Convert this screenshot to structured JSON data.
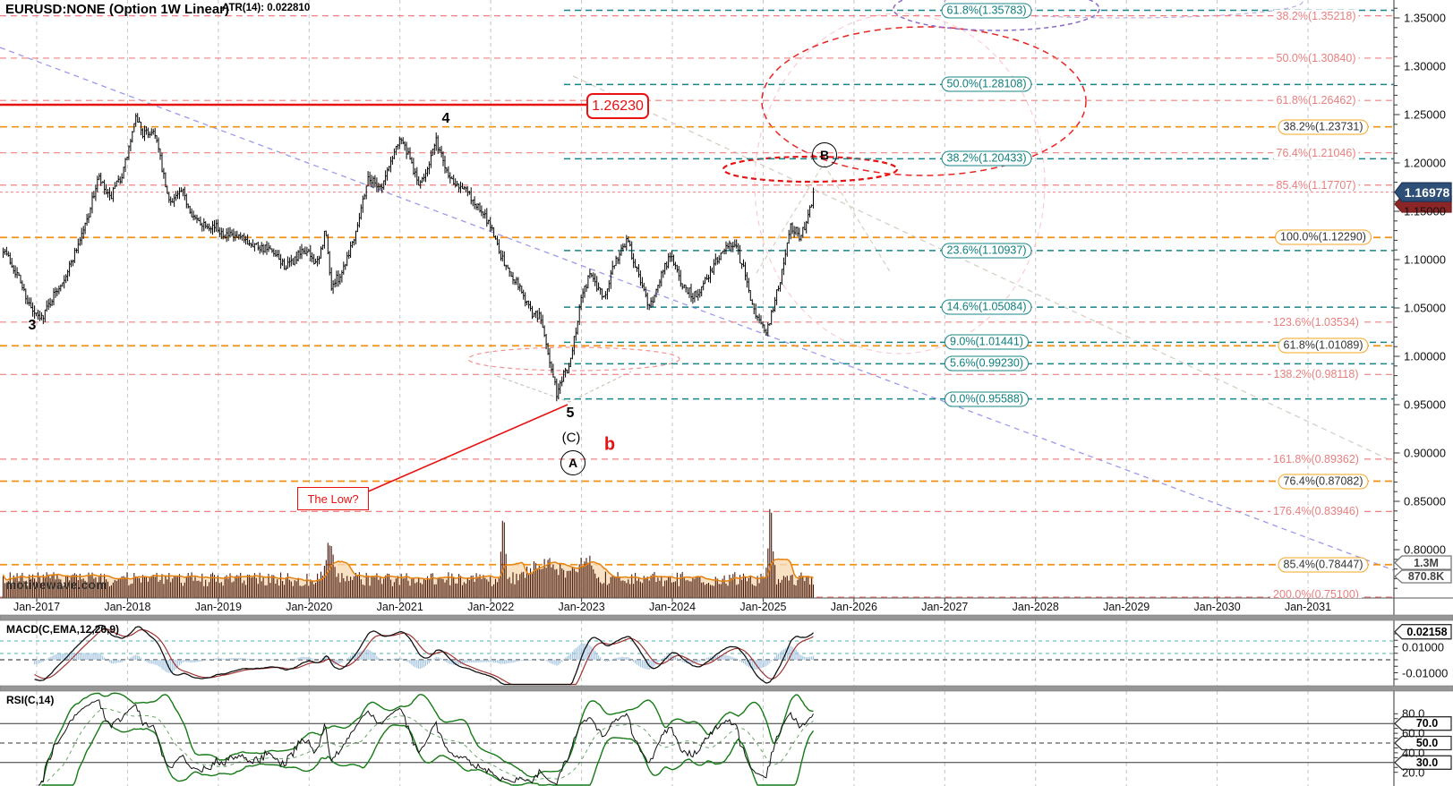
{
  "window": {
    "title": "EURUSD:NONE (Option 1W Linear)",
    "atr_label": "ATR(14): 0.022810",
    "watermark": "motivewave.com"
  },
  "colors": {
    "teal": "#18858a",
    "orange": "#f39016",
    "pink": "#f08080",
    "red": "#e81212",
    "grid": "#c4c4c4",
    "blue_trend": "#9a9aec",
    "tan_trend": "#d6cfc4",
    "candle": "#000000",
    "volume_bar": "#47180a",
    "volume_ma": "#e8820e",
    "volume_fill": "#f7d9b5",
    "macd_hist": "#a6c6e2",
    "macd_line": "#111111",
    "macd_signal": "#a03232",
    "rsi_line": "#111111",
    "rsi_band": "#157a15",
    "price_tag_bg": "#2e4f78",
    "alt_tag_bg": "#8c2626",
    "purple": "#8a6ac8",
    "pink_light": "#f5bcc4"
  },
  "price_axis": {
    "tick_labels": [
      "1.35000",
      "1.30000",
      "1.25000",
      "1.20000",
      "1.15000",
      "1.10000",
      "1.05000",
      "1.00000",
      "0.95000",
      "0.90000",
      "0.85000",
      "0.80000"
    ],
    "current_price_label": "1.16978"
  },
  "time_axis": {
    "labels": [
      "Jan-2017",
      "Jan-2018",
      "Jan-2019",
      "Jan-2020",
      "Jan-2021",
      "Jan-2022",
      "Jan-2023",
      "Jan-2024",
      "Jan-2025",
      "Jan-2026",
      "Jan-2027",
      "Jan-2028",
      "Jan-2029",
      "Jan-2030",
      "Jan-2031"
    ]
  },
  "volume_tags": [
    "1.3M",
    "870.8K"
  ],
  "level_line": {
    "label": "1.26230"
  },
  "macd_panel": {
    "title": "MACD(C,EMA,12,26,9)",
    "value_tag": "0.02158",
    "axis_labels": [
      {
        "label": "0.01000",
        "value": 0.01
      },
      {
        "label": "-0.01000",
        "value": -0.01
      }
    ]
  },
  "rsi_panel": {
    "title": "RSI(C,14)",
    "plain_labels": [
      {
        "label": "80.0",
        "value": 80
      },
      {
        "label": "60.0",
        "value": 60
      },
      {
        "label": "40.0",
        "value": 40
      },
      {
        "label": "20.0",
        "value": 20
      }
    ],
    "tag_labels": [
      {
        "label": "70.0",
        "value": 70
      },
      {
        "label": "50.0",
        "value": 50
      },
      {
        "label": "30.0",
        "value": 30
      }
    ],
    "levels": {
      "upper": 70,
      "middle": 50,
      "lower": 30
    }
  },
  "chart_data": {
    "type": "candlestick",
    "symbol": "EURUSD",
    "timeframe": "1W",
    "title": "EURUSD:NONE (Option 1W Linear)",
    "x_range": [
      "Oct-2016",
      "Jan-2031"
    ],
    "visible_price_range": [
      0.755,
      1.362
    ],
    "current_price": 1.16978,
    "atr_14": 0.02281,
    "macd_current": 0.02158,
    "indicators": [
      "Volume",
      "MACD(C,EMA,12,26,9)",
      "RSI(C,14)",
      "ATR(14)"
    ],
    "level_line_label": "1.26230",
    "elliott": {
      "w3": "3",
      "w4": "4",
      "w5": "5",
      "wC": "(C)",
      "wA": "A",
      "wB": "B",
      "wb": "b",
      "low_q": "The Low?"
    },
    "price_anchors": [
      [
        2016.63,
        1.112
      ],
      [
        2016.8,
        1.082
      ],
      [
        2016.95,
        1.046
      ],
      [
        2017.04,
        1.038
      ],
      [
        2017.2,
        1.065
      ],
      [
        2017.35,
        1.09
      ],
      [
        2017.55,
        1.14
      ],
      [
        2017.68,
        1.185
      ],
      [
        2017.8,
        1.162
      ],
      [
        2017.95,
        1.19
      ],
      [
        2018.1,
        1.248
      ],
      [
        2018.17,
        1.23
      ],
      [
        2018.3,
        1.233
      ],
      [
        2018.45,
        1.16
      ],
      [
        2018.6,
        1.17
      ],
      [
        2018.75,
        1.14
      ],
      [
        2018.95,
        1.135
      ],
      [
        2019.1,
        1.125
      ],
      [
        2019.35,
        1.118
      ],
      [
        2019.55,
        1.11
      ],
      [
        2019.75,
        1.092
      ],
      [
        2019.95,
        1.11
      ],
      [
        2020.1,
        1.095
      ],
      [
        2020.18,
        1.132
      ],
      [
        2020.24,
        1.072
      ],
      [
        2020.35,
        1.085
      ],
      [
        2020.5,
        1.125
      ],
      [
        2020.65,
        1.185
      ],
      [
        2020.8,
        1.175
      ],
      [
        2021.0,
        1.228
      ],
      [
        2021.1,
        1.205
      ],
      [
        2021.22,
        1.175
      ],
      [
        2021.4,
        1.222
      ],
      [
        2021.55,
        1.185
      ],
      [
        2021.7,
        1.175
      ],
      [
        2021.85,
        1.155
      ],
      [
        2022.0,
        1.135
      ],
      [
        2022.15,
        1.095
      ],
      [
        2022.3,
        1.075
      ],
      [
        2022.45,
        1.045
      ],
      [
        2022.55,
        1.04
      ],
      [
        2022.65,
        0.995
      ],
      [
        2022.73,
        0.96
      ],
      [
        2022.78,
        0.975
      ],
      [
        2022.88,
        0.995
      ],
      [
        2023.0,
        1.065
      ],
      [
        2023.1,
        1.085
      ],
      [
        2023.25,
        1.06
      ],
      [
        2023.35,
        1.095
      ],
      [
        2023.5,
        1.122
      ],
      [
        2023.62,
        1.085
      ],
      [
        2023.75,
        1.05
      ],
      [
        2023.88,
        1.085
      ],
      [
        2023.98,
        1.105
      ],
      [
        2024.1,
        1.075
      ],
      [
        2024.25,
        1.062
      ],
      [
        2024.4,
        1.085
      ],
      [
        2024.55,
        1.11
      ],
      [
        2024.68,
        1.118
      ],
      [
        2024.8,
        1.085
      ],
      [
        2024.92,
        1.04
      ],
      [
        2025.02,
        1.025
      ],
      [
        2025.1,
        1.045
      ],
      [
        2025.2,
        1.085
      ],
      [
        2025.3,
        1.135
      ],
      [
        2025.4,
        1.125
      ],
      [
        2025.48,
        1.14
      ],
      [
        2025.56,
        1.16978
      ]
    ],
    "volume_spikes": [
      [
        2020.22,
        40,
        0.04
      ],
      [
        2022.14,
        72,
        0.02
      ],
      [
        2022.6,
        18,
        0.15
      ],
      [
        2023.05,
        22,
        0.08
      ],
      [
        2025.08,
        75,
        0.025
      ]
    ],
    "fib_sets": {
      "teal": [
        {
          "label": "61.8%(1.35783)",
          "price": 1.35783
        },
        {
          "label": "50.0%(1.28108)",
          "price": 1.28108
        },
        {
          "label": "38.2%(1.20433)",
          "price": 1.20433
        },
        {
          "label": "23.6%(1.10937)",
          "price": 1.10937
        },
        {
          "label": "14.6%(1.05084)",
          "price": 1.05084
        },
        {
          "label": "9.0%(1.01441)",
          "price": 1.01441
        },
        {
          "label": "5.6%(0.99230)",
          "price": 0.9923
        },
        {
          "label": "0.0%(0.95588)",
          "price": 0.95588
        }
      ],
      "orange": [
        {
          "label": "38.2%(1.23731)",
          "price": 1.23731
        },
        {
          "label": "100.0%(1.12290)",
          "price": 1.1229
        },
        {
          "label": "61.8%(1.01089)",
          "price": 1.01089
        },
        {
          "label": "76.4%(0.87082)",
          "price": 0.87082
        },
        {
          "label": "85.4%(0.78447)",
          "price": 0.78447
        }
      ],
      "pink": [
        {
          "label": "38.2%(1.35218)",
          "price": 1.35218
        },
        {
          "label": "50.0%(1.30840)",
          "price": 1.3084
        },
        {
          "label": "61.8%(1.26462)",
          "price": 1.26462
        },
        {
          "label": "76.4%(1.21046)",
          "price": 1.21046
        },
        {
          "label": "85.4%(1.17707)",
          "price": 1.17707
        },
        {
          "label": "123.6%(1.03534)",
          "price": 1.03534
        },
        {
          "label": "138.2%(0.98118)",
          "price": 0.98118
        },
        {
          "label": "161.8%(0.89362)",
          "price": 0.89362
        },
        {
          "label": "176.4%(0.83946)",
          "price": 0.83946
        },
        {
          "label": "200.0%(0.75100)",
          "price": 0.751
        }
      ]
    }
  }
}
